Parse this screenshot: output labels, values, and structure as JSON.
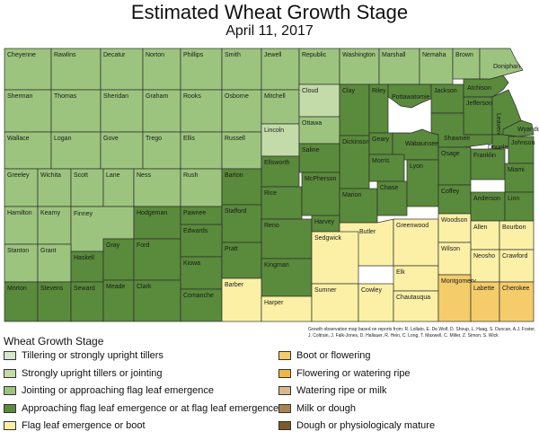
{
  "title": "Estimated Wheat Growth Stage",
  "date": "April 11, 2017",
  "credit": "Growth observation map based on reports from: R. Lollato, E. De Wolf, D. Shoup, L. Haag, S. Duncan, A.J. Foster, J. Coltrain, J. Falk-Jones, D. Hallauer, R. Hein, C. Long, T. Maxwell, C. Miller, Z. Simon, S. Wick",
  "legend": {
    "title": "Wheat Growth Stage",
    "items": [
      {
        "id": "tillering",
        "label": "Tillering or strongly upright tillers",
        "color": "#d9e6cc"
      },
      {
        "id": "jointing",
        "label": "Strongly upright tillers or jointing",
        "color": "#c3dba8"
      },
      {
        "id": "flagleaf_approach",
        "label": "Jointing or approaching flag leaf emergence",
        "color": "#9cc47e"
      },
      {
        "id": "flagleaf",
        "label": "Approaching flag leaf emergence or at flag leaf emergence",
        "color": "#5a8a3c"
      },
      {
        "id": "boot",
        "label": "Flag leaf emergence or boot",
        "color": "#fbf0a6"
      },
      {
        "id": "boot_flower",
        "label": "Boot or flowering",
        "color": "#f5cc6a"
      },
      {
        "id": "flower",
        "label": "Flowering or watering ripe",
        "color": "#f1b648"
      },
      {
        "id": "milk",
        "label": "Watering ripe or milk",
        "color": "#d9b88c"
      },
      {
        "id": "dough",
        "label": "Milk or dough",
        "color": "#a88550"
      },
      {
        "id": "mature",
        "label": "Dough or physiologicaly mature",
        "color": "#7b5a30"
      }
    ]
  },
  "counties": [
    {
      "name": "Cheyenne",
      "stage": "flagleaf_approach"
    },
    {
      "name": "Rawlins",
      "stage": "flagleaf_approach"
    },
    {
      "name": "Decatur",
      "stage": "flagleaf_approach"
    },
    {
      "name": "Norton",
      "stage": "flagleaf_approach"
    },
    {
      "name": "Phillips",
      "stage": "flagleaf_approach"
    },
    {
      "name": "Smith",
      "stage": "flagleaf_approach"
    },
    {
      "name": "Jewell",
      "stage": "flagleaf_approach"
    },
    {
      "name": "Republic",
      "stage": "flagleaf_approach"
    },
    {
      "name": "Washington",
      "stage": "flagleaf_approach"
    },
    {
      "name": "Marshall",
      "stage": "flagleaf_approach"
    },
    {
      "name": "Nemaha",
      "stage": "flagleaf_approach"
    },
    {
      "name": "Brown",
      "stage": "flagleaf_approach"
    },
    {
      "name": "Doniphan",
      "stage": "flagleaf_approach"
    },
    {
      "name": "Sherman",
      "stage": "flagleaf_approach"
    },
    {
      "name": "Thomas",
      "stage": "flagleaf_approach"
    },
    {
      "name": "Sheridan",
      "stage": "flagleaf_approach"
    },
    {
      "name": "Graham",
      "stage": "flagleaf_approach"
    },
    {
      "name": "Rooks",
      "stage": "flagleaf_approach"
    },
    {
      "name": "Osborne",
      "stage": "flagleaf_approach"
    },
    {
      "name": "Mitchell",
      "stage": "flagleaf_approach"
    },
    {
      "name": "Cloud",
      "stage": "jointing"
    },
    {
      "name": "Clay",
      "stage": "flagleaf"
    },
    {
      "name": "Riley",
      "stage": "flagleaf"
    },
    {
      "name": "Pottawatomie",
      "stage": "flagleaf"
    },
    {
      "name": "Jackson",
      "stage": "flagleaf"
    },
    {
      "name": "Atchison",
      "stage": "flagleaf"
    },
    {
      "name": "Jefferson",
      "stage": "flagleaf"
    },
    {
      "name": "Leavenworth",
      "stage": "flagleaf"
    },
    {
      "name": "Wyandotte",
      "stage": "flagleaf"
    },
    {
      "name": "Wallace",
      "stage": "flagleaf_approach"
    },
    {
      "name": "Logan",
      "stage": "flagleaf_approach"
    },
    {
      "name": "Gove",
      "stage": "flagleaf_approach"
    },
    {
      "name": "Trego",
      "stage": "flagleaf_approach"
    },
    {
      "name": "Ellis",
      "stage": "flagleaf_approach"
    },
    {
      "name": "Russell",
      "stage": "flagleaf_approach"
    },
    {
      "name": "Lincoln",
      "stage": "jointing"
    },
    {
      "name": "Ottawa",
      "stage": "flagleaf_approach"
    },
    {
      "name": "Dickinson",
      "stage": "flagleaf"
    },
    {
      "name": "Geary",
      "stage": "flagleaf"
    },
    {
      "name": "Wabaunsee",
      "stage": "flagleaf"
    },
    {
      "name": "Shawnee",
      "stage": "flagleaf"
    },
    {
      "name": "Douglas",
      "stage": "flagleaf"
    },
    {
      "name": "Johnson",
      "stage": "flagleaf"
    },
    {
      "name": "Saline",
      "stage": "flagleaf"
    },
    {
      "name": "Ellsworth",
      "stage": "flagleaf"
    },
    {
      "name": "Morris",
      "stage": "flagleaf"
    },
    {
      "name": "Osage",
      "stage": "flagleaf"
    },
    {
      "name": "Franklin",
      "stage": "flagleaf"
    },
    {
      "name": "Miami",
      "stage": "flagleaf"
    },
    {
      "name": "Greeley",
      "stage": "flagleaf_approach"
    },
    {
      "name": "Wichita",
      "stage": "flagleaf_approach"
    },
    {
      "name": "Scott",
      "stage": "flagleaf_approach"
    },
    {
      "name": "Lane",
      "stage": "flagleaf_approach"
    },
    {
      "name": "Ness",
      "stage": "flagleaf_approach"
    },
    {
      "name": "Rush",
      "stage": "flagleaf_approach"
    },
    {
      "name": "Barton",
      "stage": "flagleaf"
    },
    {
      "name": "Rice",
      "stage": "flagleaf"
    },
    {
      "name": "McPherson",
      "stage": "flagleaf"
    },
    {
      "name": "Marion",
      "stage": "flagleaf"
    },
    {
      "name": "Chase",
      "stage": "flagleaf"
    },
    {
      "name": "Lyon",
      "stage": "flagleaf"
    },
    {
      "name": "Coffey",
      "stage": "flagleaf"
    },
    {
      "name": "Anderson",
      "stage": "flagleaf"
    },
    {
      "name": "Linn",
      "stage": "flagleaf"
    },
    {
      "name": "Hamilton",
      "stage": "flagleaf_approach"
    },
    {
      "name": "Kearny",
      "stage": "flagleaf_approach"
    },
    {
      "name": "Finney",
      "stage": "flagleaf_approach"
    },
    {
      "name": "Hodgeman",
      "stage": "flagleaf"
    },
    {
      "name": "Pawnee",
      "stage": "flagleaf"
    },
    {
      "name": "Stafford",
      "stage": "flagleaf"
    },
    {
      "name": "Reno",
      "stage": "flagleaf"
    },
    {
      "name": "Harvey",
      "stage": "flagleaf"
    },
    {
      "name": "Butler",
      "stage": "boot"
    },
    {
      "name": "Greenwood",
      "stage": "boot"
    },
    {
      "name": "Woodson",
      "stage": "boot"
    },
    {
      "name": "Allen",
      "stage": "boot"
    },
    {
      "name": "Bourbon",
      "stage": "boot"
    },
    {
      "name": "Gray",
      "stage": "flagleaf"
    },
    {
      "name": "Ford",
      "stage": "flagleaf"
    },
    {
      "name": "Edwards",
      "stage": "flagleaf"
    },
    {
      "name": "Kiowa",
      "stage": "flagleaf"
    },
    {
      "name": "Pratt",
      "stage": "flagleaf"
    },
    {
      "name": "Kingman",
      "stage": "flagleaf"
    },
    {
      "name": "Sedgwick",
      "stage": "boot"
    },
    {
      "name": "Elk",
      "stage": "boot"
    },
    {
      "name": "Wilson",
      "stage": "boot"
    },
    {
      "name": "Neosho",
      "stage": "boot"
    },
    {
      "name": "Crawford",
      "stage": "boot"
    },
    {
      "name": "Stanton",
      "stage": "flagleaf_approach"
    },
    {
      "name": "Grant",
      "stage": "flagleaf_approach"
    },
    {
      "name": "Haskell",
      "stage": "flagleaf"
    },
    {
      "name": "Meade",
      "stage": "flagleaf"
    },
    {
      "name": "Clark",
      "stage": "flagleaf"
    },
    {
      "name": "Comanche",
      "stage": "flagleaf"
    },
    {
      "name": "Barber",
      "stage": "boot"
    },
    {
      "name": "Harper",
      "stage": "boot"
    },
    {
      "name": "Sumner",
      "stage": "boot"
    },
    {
      "name": "Cowley",
      "stage": "boot"
    },
    {
      "name": "Chautauqua",
      "stage": "boot"
    },
    {
      "name": "Montgomery",
      "stage": "boot_flower"
    },
    {
      "name": "Labette",
      "stage": "boot_flower"
    },
    {
      "name": "Cherokee",
      "stage": "boot_flower"
    },
    {
      "name": "Morton",
      "stage": "flagleaf"
    },
    {
      "name": "Stevens",
      "stage": "flagleaf"
    },
    {
      "name": "Seward",
      "stage": "flagleaf"
    }
  ]
}
